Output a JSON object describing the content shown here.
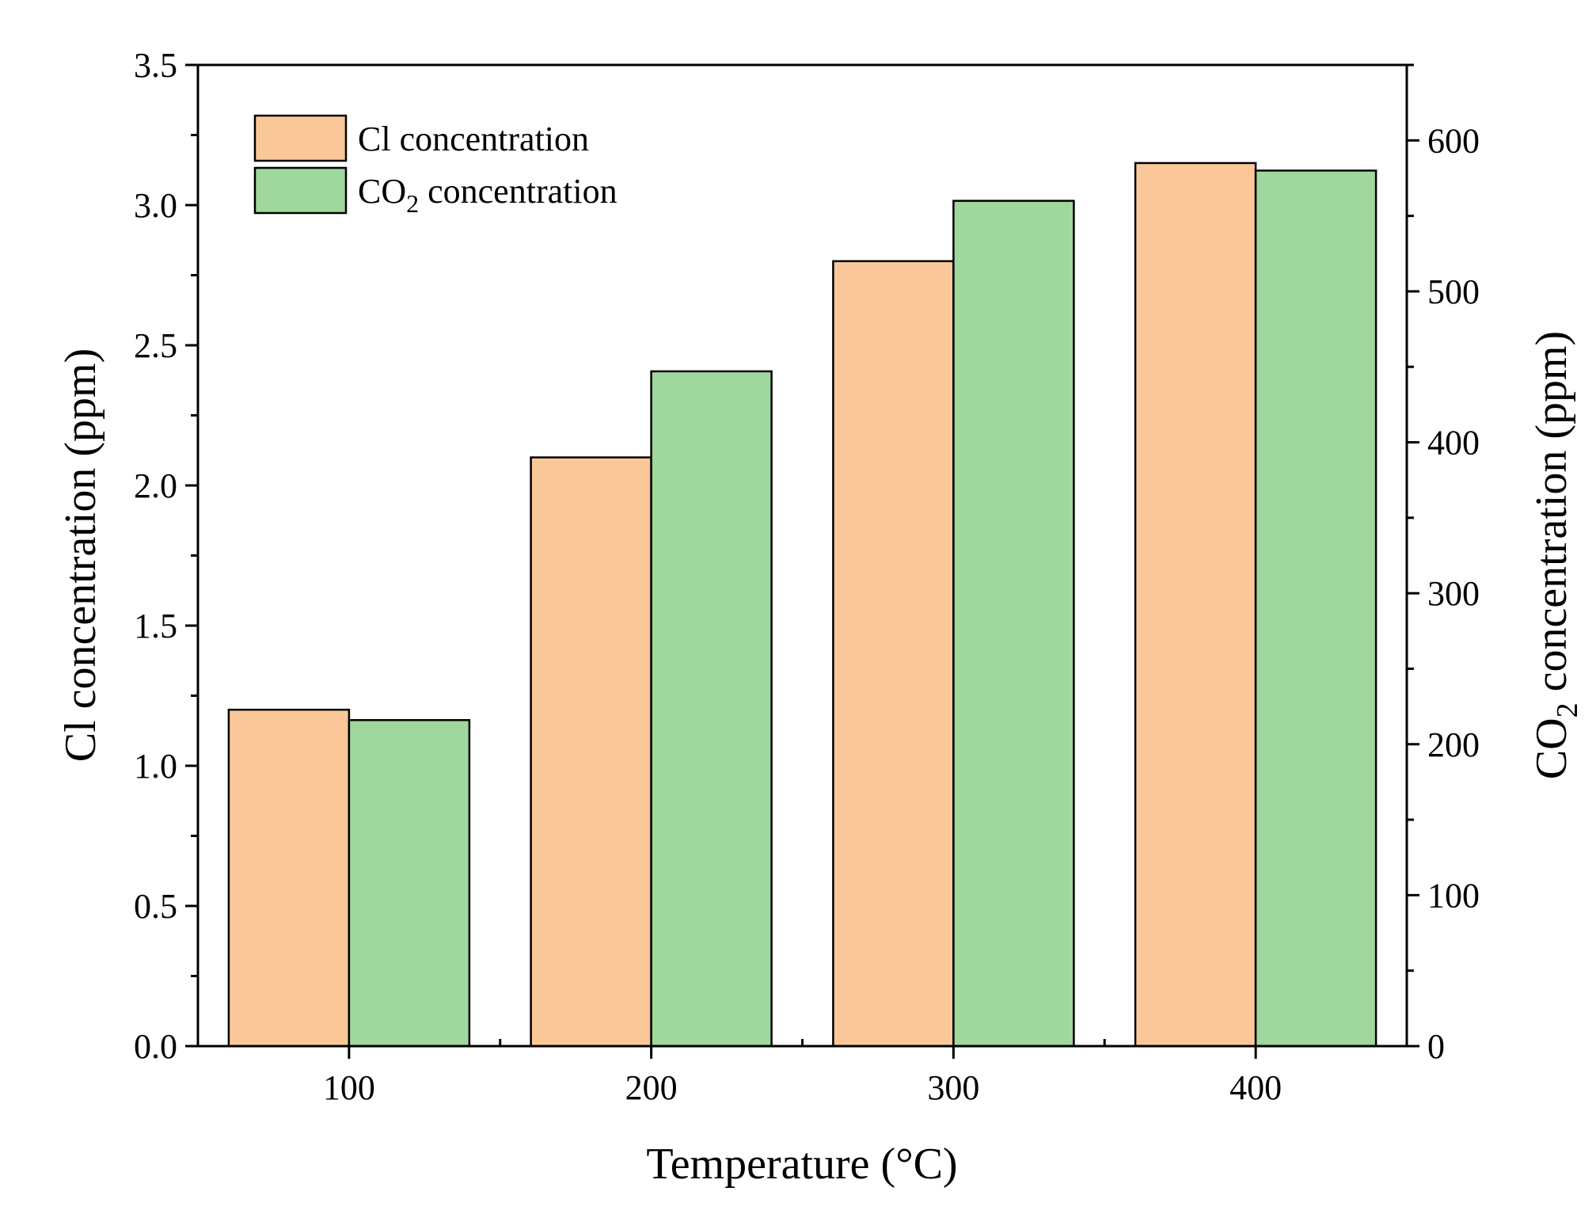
{
  "chart_data": {
    "type": "bar",
    "categories": [
      "100",
      "200",
      "300",
      "400"
    ],
    "xlabel": "Temperature (°C)",
    "series": [
      {
        "name": "Cl concentration",
        "axis": "left",
        "color": "#FAC898",
        "values": [
          1.2,
          2.1,
          2.8,
          3.15
        ]
      },
      {
        "name": "CO2 concentration",
        "name_main": "CO",
        "name_sub": "2",
        "name_rest": " concentration",
        "axis": "right",
        "color": "#9FD79C",
        "values": [
          216,
          447,
          560,
          580
        ]
      }
    ],
    "y_left": {
      "label": "Cl concentration (ppm)",
      "ylim": [
        0,
        3.5
      ],
      "ticks": [
        "0.0",
        "0.5",
        "1.0",
        "1.5",
        "2.0",
        "2.5",
        "3.0",
        "3.5"
      ]
    },
    "y_right": {
      "label_main": "CO",
      "label_sub": "2",
      "label_rest": " concentration (ppm)",
      "ylim": [
        0,
        650
      ],
      "ticks": [
        "0",
        "100",
        "200",
        "300",
        "400",
        "500",
        "600"
      ]
    },
    "legend_position": "top-left",
    "grid": false
  }
}
